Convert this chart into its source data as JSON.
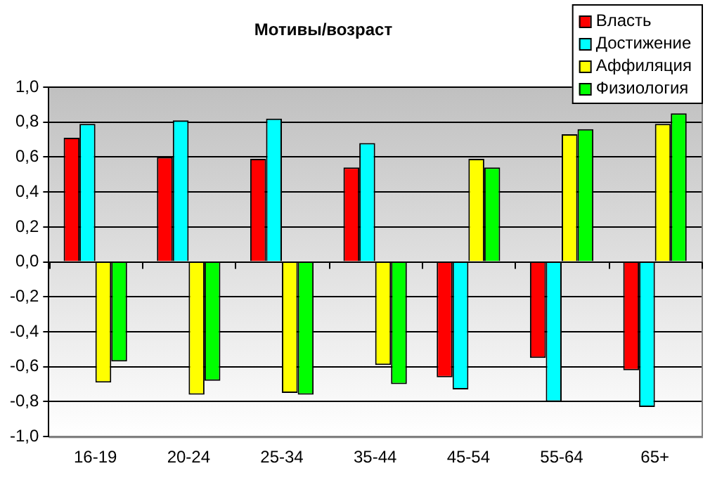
{
  "chart_data": {
    "type": "bar",
    "title": "Мотивы/возраст",
    "categories": [
      "16-19",
      "20-24",
      "25-34",
      "35-44",
      "45-54",
      "55-64",
      "65+"
    ],
    "series": [
      {
        "name": "Власть",
        "color": "#ff0000",
        "values": [
          0.71,
          0.6,
          0.59,
          0.54,
          -0.66,
          -0.55,
          -0.62
        ]
      },
      {
        "name": "Достижение",
        "color": "#00ffff",
        "values": [
          0.79,
          0.81,
          0.82,
          0.68,
          -0.73,
          -0.8,
          -0.83
        ]
      },
      {
        "name": "Аффиляция",
        "color": "#ffff00",
        "values": [
          -0.69,
          -0.76,
          -0.75,
          -0.59,
          0.59,
          0.73,
          0.79
        ]
      },
      {
        "name": "Физиология",
        "color": "#00ff00",
        "values": [
          -0.57,
          -0.68,
          -0.76,
          -0.7,
          0.54,
          0.76,
          0.85
        ]
      }
    ],
    "ylim": [
      -1,
      1
    ],
    "yticks": [
      {
        "value": -1,
        "label": "-1,0"
      },
      {
        "value": -0.8,
        "label": "-0,8"
      },
      {
        "value": -0.6,
        "label": "-0,6"
      },
      {
        "value": -0.4,
        "label": "-0,4"
      },
      {
        "value": -0.2,
        "label": "-0,2"
      },
      {
        "value": 0,
        "label": "0,0"
      },
      {
        "value": 0.2,
        "label": "0,2"
      },
      {
        "value": 0.4,
        "label": "0,4"
      },
      {
        "value": 0.6,
        "label": "0,6"
      },
      {
        "value": 0.8,
        "label": "0,8"
      },
      {
        "value": 1,
        "label": "1,0"
      }
    ],
    "grid": "y",
    "legend": "top right"
  }
}
